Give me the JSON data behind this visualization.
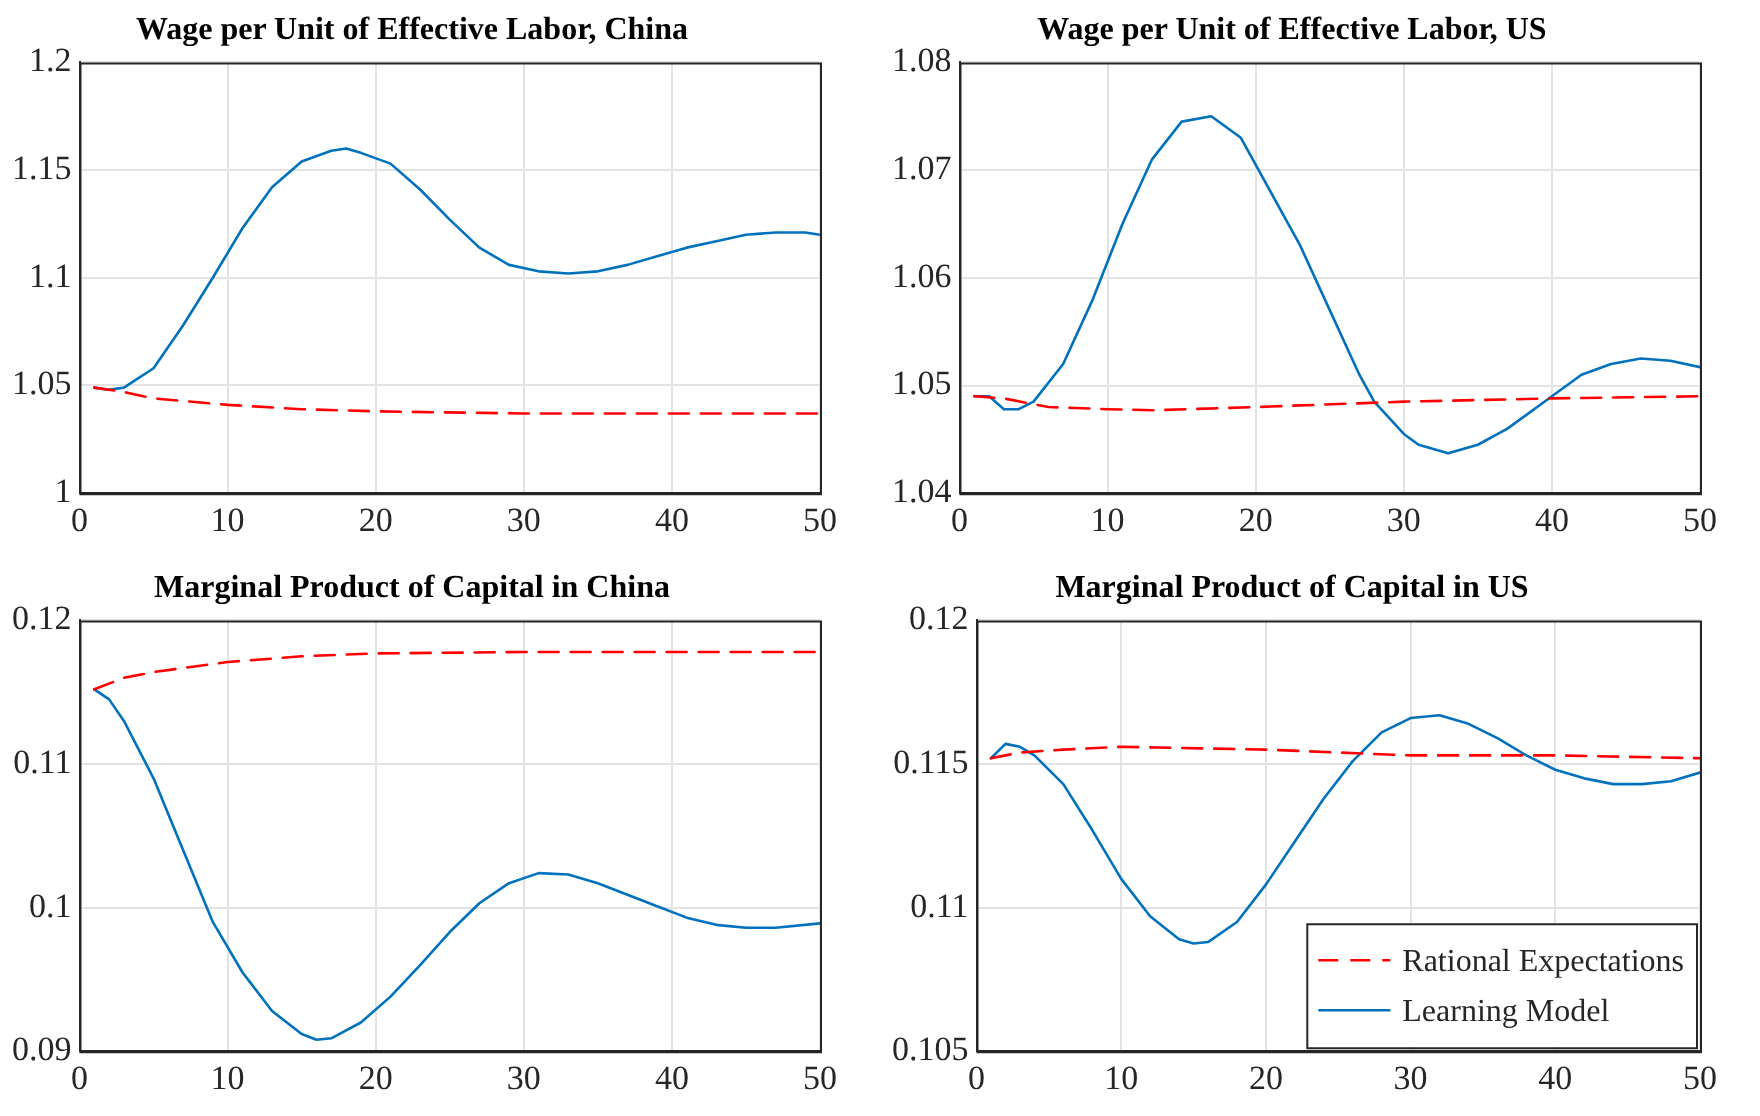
{
  "chart_data": [
    {
      "type": "line",
      "title": "Wage per Unit of Effective Labor, China",
      "xlim": [
        0,
        50
      ],
      "xticks": [
        0,
        10,
        20,
        30,
        40,
        50
      ],
      "ylim": [
        1,
        1.2
      ],
      "yticks": [
        1,
        1.05,
        1.1,
        1.15,
        1.2
      ],
      "grid": true,
      "series": [
        {
          "color": "#ff0000",
          "line_style": "dashed",
          "x": [
            1,
            3,
            5,
            10,
            15,
            20,
            30,
            40,
            50
          ],
          "values": [
            1.049,
            1.047,
            1.044,
            1.041,
            1.039,
            1.038,
            1.037,
            1.037,
            1.037
          ]
        },
        {
          "color": "#0072bd",
          "line_style": "solid",
          "x": [
            1,
            2,
            3,
            5,
            7,
            9,
            11,
            13,
            15,
            17,
            18,
            19,
            21,
            23,
            25,
            27,
            29,
            31,
            33,
            35,
            37,
            39,
            41,
            43,
            45,
            47,
            49,
            50
          ],
          "values": [
            1.049,
            1.048,
            1.049,
            1.058,
            1.078,
            1.1,
            1.123,
            1.142,
            1.154,
            1.159,
            1.16,
            1.158,
            1.153,
            1.141,
            1.127,
            1.114,
            1.106,
            1.103,
            1.102,
            1.103,
            1.106,
            1.11,
            1.114,
            1.117,
            1.12,
            1.121,
            1.121,
            1.12
          ]
        }
      ]
    },
    {
      "type": "line",
      "title": "Wage per Unit of Effective Labor, US",
      "xlim": [
        0,
        50
      ],
      "xticks": [
        0,
        10,
        20,
        30,
        40,
        50
      ],
      "ylim": [
        1.04,
        1.08
      ],
      "yticks": [
        1.04,
        1.05,
        1.06,
        1.07,
        1.08
      ],
      "grid": true,
      "series": [
        {
          "color": "#ff0000",
          "line_style": "dashed",
          "x": [
            1,
            3,
            6,
            10,
            13,
            20,
            30,
            40,
            50
          ],
          "values": [
            1.049,
            1.0488,
            1.048,
            1.0478,
            1.0477,
            1.048,
            1.0485,
            1.0488,
            1.049
          ]
        },
        {
          "color": "#0072bd",
          "line_style": "solid",
          "x": [
            1,
            2,
            3,
            4,
            5,
            7,
            9,
            11,
            13,
            15,
            17,
            19,
            21,
            23,
            25,
            27,
            28,
            30,
            31,
            33,
            35,
            37,
            40,
            42,
            44,
            46,
            48,
            50
          ],
          "values": [
            1.049,
            1.049,
            1.0478,
            1.0478,
            1.0485,
            1.052,
            1.058,
            1.065,
            1.071,
            1.0745,
            1.075,
            1.073,
            1.068,
            1.063,
            1.057,
            1.051,
            1.0485,
            1.0455,
            1.0445,
            1.0437,
            1.0445,
            1.046,
            1.049,
            1.051,
            1.052,
            1.0525,
            1.0523,
            1.0517
          ]
        }
      ]
    },
    {
      "type": "line",
      "title": "Marginal Product of Capital in China",
      "xlim": [
        0,
        50
      ],
      "xticks": [
        0,
        10,
        20,
        30,
        40,
        50
      ],
      "ylim": [
        0.09,
        0.12
      ],
      "yticks": [
        0.09,
        0.1,
        0.11,
        0.12
      ],
      "grid": true,
      "series": [
        {
          "color": "#ff0000",
          "line_style": "dashed",
          "x": [
            1,
            3,
            5,
            10,
            15,
            20,
            30,
            40,
            50
          ],
          "values": [
            0.1152,
            0.116,
            0.1164,
            0.1171,
            0.1175,
            0.1177,
            0.1178,
            0.1178,
            0.1178
          ]
        },
        {
          "color": "#0072bd",
          "line_style": "solid",
          "x": [
            1,
            2,
            3,
            5,
            7,
            9,
            11,
            13,
            15,
            16,
            17,
            19,
            21,
            23,
            25,
            27,
            29,
            31,
            33,
            35,
            37,
            39,
            41,
            43,
            45,
            47,
            50
          ],
          "values": [
            0.1152,
            0.1145,
            0.113,
            0.109,
            0.104,
            0.099,
            0.0955,
            0.0928,
            0.0912,
            0.0908,
            0.0909,
            0.092,
            0.0938,
            0.096,
            0.0983,
            0.1003,
            0.1017,
            0.1024,
            0.1023,
            0.1017,
            0.1009,
            0.1001,
            0.0993,
            0.0988,
            0.0986,
            0.0986,
            0.0989
          ]
        }
      ]
    },
    {
      "type": "line",
      "title": "Marginal Product of Capital in US",
      "xlim": [
        0,
        50
      ],
      "xticks": [
        0,
        10,
        20,
        30,
        40,
        50
      ],
      "ylim": [
        0.105,
        0.12
      ],
      "yticks": [
        0.105,
        0.11,
        0.115,
        0.12
      ],
      "grid": true,
      "legend": "bottom right",
      "series": [
        {
          "name": "Rational Expectations",
          "color": "#ff0000",
          "line_style": "dashed",
          "x": [
            1,
            3,
            6,
            10,
            20,
            30,
            40,
            50
          ],
          "values": [
            0.1152,
            0.1154,
            0.1155,
            0.1156,
            0.1155,
            0.1153,
            0.1153,
            0.1152
          ]
        },
        {
          "name": "Learning Model",
          "color": "#0072bd",
          "line_style": "solid",
          "x": [
            1,
            2,
            3,
            4,
            6,
            8,
            10,
            12,
            14,
            15,
            16,
            18,
            20,
            22,
            24,
            26,
            28,
            30,
            32,
            34,
            36,
            38,
            40,
            42,
            44,
            46,
            48,
            50
          ],
          "values": [
            0.1152,
            0.1157,
            0.1156,
            0.1153,
            0.1143,
            0.1127,
            0.111,
            0.1097,
            0.1089,
            0.10875,
            0.1088,
            0.1095,
            0.1108,
            0.1123,
            0.1138,
            0.1151,
            0.1161,
            0.1166,
            0.1167,
            0.1164,
            0.1159,
            0.1153,
            0.1148,
            0.1145,
            0.1143,
            0.1143,
            0.1144,
            0.1147
          ]
        }
      ]
    }
  ]
}
